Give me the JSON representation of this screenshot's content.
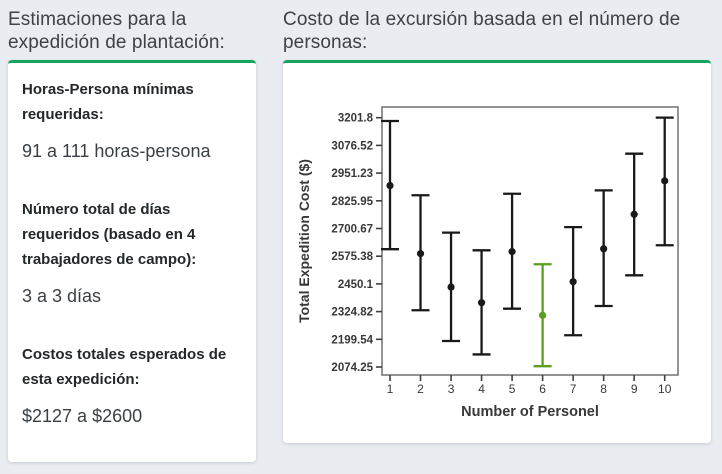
{
  "accent_color": "#17a45c",
  "left_panel": {
    "title": "Estimaciones para la expedición de plantación:",
    "sections": [
      {
        "label": "Horas-Persona mínimas requeridas:",
        "value": "91 a 111 horas-persona"
      },
      {
        "label": "Número total de días requeridos (basado en 4 trabajadores de campo):",
        "value": "3 a 3 días"
      },
      {
        "label": "Costos totales esperados de esta expedición:",
        "value": "$2127 a $2600"
      }
    ]
  },
  "right_panel": {
    "title": "Costo de la excursión basada en el número de personas:"
  },
  "chart_data": {
    "type": "scatter",
    "subtype": "points-with-error-bars",
    "title": "",
    "xlabel": "Number of Personel",
    "ylabel": "Total Expedition Cost ($)",
    "x": [
      1,
      2,
      3,
      4,
      5,
      6,
      7,
      8,
      9,
      10
    ],
    "mean": [
      2895,
      2587,
      2436,
      2365,
      2596,
      2308,
      2460,
      2609,
      2765,
      2916
    ],
    "low": [
      2607,
      2331,
      2192,
      2131,
      2338,
      2078,
      2218,
      2350,
      2489,
      2625
    ],
    "high": [
      3187,
      2851,
      2682,
      2602,
      2858,
      2539,
      2707,
      2873,
      3039,
      3202
    ],
    "highlight_x": 6,
    "highlight_color": "#5c9e1f",
    "point_color": "#191919",
    "frame_color": "#7a7a7a",
    "ylim": [
      2074.25,
      3201.8
    ],
    "yticks": [
      "3201.8",
      "3076.52",
      "2951.23",
      "2825.95",
      "2700.67",
      "2575.38",
      "2450.1",
      "2324.82",
      "2199.54",
      "2074.25"
    ],
    "xticks": [
      "1",
      "2",
      "3",
      "4",
      "5",
      "6",
      "7",
      "8",
      "9",
      "10"
    ],
    "grid": false,
    "legend": "none"
  }
}
